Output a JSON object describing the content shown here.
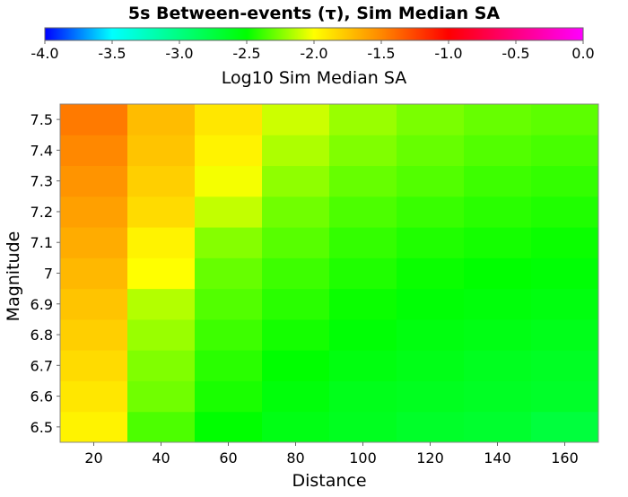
{
  "chart_data": {
    "type": "heatmap",
    "title": "5s Between-events (τ), Sim Median SA",
    "colorbar": {
      "label": "Log10 Sim Median SA",
      "min": -4.0,
      "max": 0.0,
      "tick_values": [
        -4.0,
        -3.5,
        -3.0,
        -2.5,
        -2.0,
        -1.5,
        -1.0,
        -0.5,
        0.0
      ],
      "tick_labels": [
        "-4.0",
        "-3.5",
        "-3.0",
        "-2.5",
        "-2.0",
        "-1.5",
        "-1.0",
        "-0.5",
        "0.0"
      ],
      "colormap": [
        {
          "value": -4.0,
          "color": "#0000ff"
        },
        {
          "value": -3.5,
          "color": "#00ffff"
        },
        {
          "value": -3.0,
          "color": "#00ff80"
        },
        {
          "value": -2.5,
          "color": "#00ff00"
        },
        {
          "value": -2.0,
          "color": "#ffff00"
        },
        {
          "value": -1.5,
          "color": "#ff8800"
        },
        {
          "value": -1.0,
          "color": "#ff0000"
        },
        {
          "value": -0.5,
          "color": "#ff0080"
        },
        {
          "value": 0.0,
          "color": "#ff00ff"
        }
      ]
    },
    "x": {
      "label": "Distance",
      "categories": [
        20,
        40,
        60,
        80,
        100,
        120,
        140,
        160
      ],
      "tick_labels": [
        "20",
        "40",
        "60",
        "80",
        "100",
        "120",
        "140",
        "160"
      ]
    },
    "y": {
      "label": "Magnitude",
      "categories": [
        6.5,
        6.6,
        6.7,
        6.8,
        6.9,
        7.0,
        7.1,
        7.2,
        7.3,
        7.4,
        7.5
      ],
      "tick_labels": [
        "6.5",
        "6.6",
        "6.7",
        "6.8",
        "6.9",
        "7",
        "7.1",
        "7.2",
        "7.3",
        "7.4",
        "7.5"
      ]
    },
    "values_by_magnitude": [
      [
        -1.95,
        -2.35,
        -2.5,
        -2.58,
        -2.62,
        -2.66,
        -2.68,
        -2.74
      ],
      [
        -1.9,
        -2.28,
        -2.45,
        -2.54,
        -2.6,
        -2.62,
        -2.64,
        -2.66
      ],
      [
        -1.85,
        -2.25,
        -2.42,
        -2.5,
        -2.56,
        -2.59,
        -2.62,
        -2.64
      ],
      [
        -1.8,
        -2.2,
        -2.38,
        -2.46,
        -2.52,
        -2.56,
        -2.58,
        -2.6
      ],
      [
        -1.75,
        -2.15,
        -2.34,
        -2.42,
        -2.48,
        -2.52,
        -2.54,
        -2.56
      ],
      [
        -1.7,
        -2.0,
        -2.3,
        -2.38,
        -2.44,
        -2.48,
        -2.5,
        -2.52
      ],
      [
        -1.65,
        -1.95,
        -2.24,
        -2.33,
        -2.4,
        -2.44,
        -2.46,
        -2.48
      ],
      [
        -1.6,
        -1.85,
        -2.12,
        -2.28,
        -2.35,
        -2.39,
        -2.42,
        -2.44
      ],
      [
        -1.55,
        -1.8,
        -2.02,
        -2.22,
        -2.3,
        -2.34,
        -2.38,
        -2.4
      ],
      [
        -1.5,
        -1.75,
        -1.95,
        -2.16,
        -2.25,
        -2.3,
        -2.34,
        -2.36
      ],
      [
        -1.45,
        -1.72,
        -1.9,
        -2.1,
        -2.2,
        -2.26,
        -2.3,
        -2.32
      ]
    ]
  }
}
